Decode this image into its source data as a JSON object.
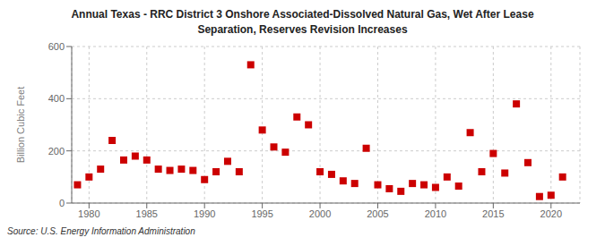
{
  "chart_data": {
    "type": "scatter",
    "title": "Annual Texas - RRC District 3 Onshore Associated-Dissolved Natural Gas, Wet After Lease\nSeparation, Reserves Revision Increases",
    "y_label": "Billion Cubic Feet",
    "source": "Source: U.S. Energy Information Administration",
    "x": [
      1979,
      1980,
      1981,
      1982,
      1983,
      1984,
      1985,
      1986,
      1987,
      1988,
      1989,
      1990,
      1991,
      1992,
      1993,
      1994,
      1995,
      1996,
      1997,
      1998,
      1999,
      2000,
      2001,
      2002,
      2003,
      2004,
      2005,
      2006,
      2007,
      2008,
      2009,
      2010,
      2011,
      2012,
      2013,
      2014,
      2015,
      2016,
      2017,
      2018,
      2019,
      2020,
      2021
    ],
    "values": [
      70,
      100,
      130,
      240,
      165,
      180,
      165,
      130,
      125,
      130,
      125,
      90,
      120,
      160,
      120,
      530,
      280,
      215,
      195,
      330,
      300,
      120,
      110,
      85,
      75,
      210,
      70,
      55,
      45,
      75,
      70,
      60,
      100,
      65,
      270,
      120,
      190,
      115,
      380,
      155,
      25,
      30,
      100
    ],
    "color": "#cc0000",
    "marker": "square",
    "xlim": [
      1978.5,
      2022.5
    ],
    "ylim": [
      0,
      600
    ],
    "xticks": [
      1980,
      1985,
      1990,
      1995,
      2000,
      2005,
      2010,
      2015,
      2020
    ],
    "yticks": [
      0,
      200,
      400,
      600
    ],
    "grid": true
  }
}
